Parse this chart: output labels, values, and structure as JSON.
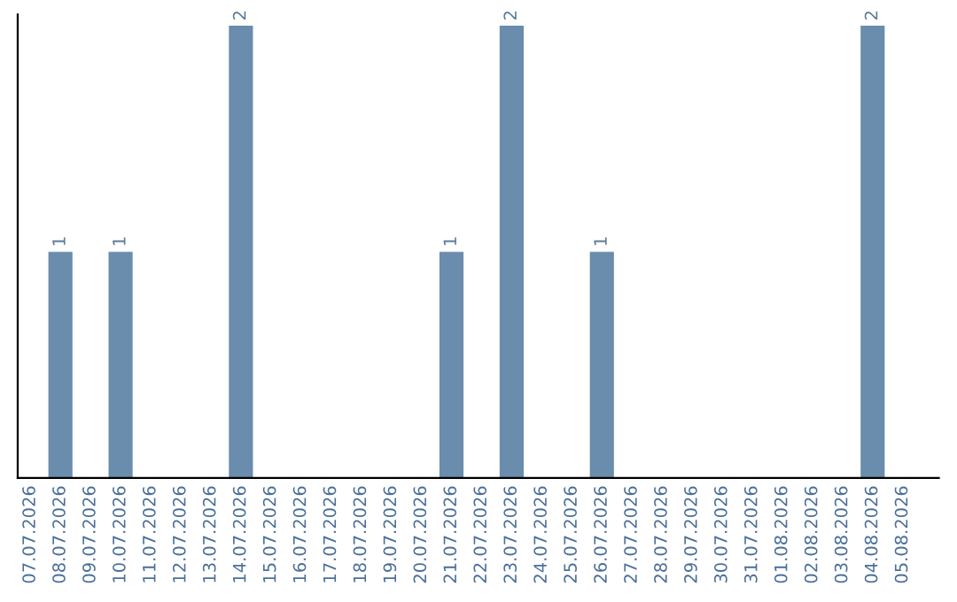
{
  "chart_data": {
    "type": "bar",
    "categories": [
      "07.07.2026",
      "08.07.2026",
      "09.07.2026",
      "10.07.2026",
      "11.07.2026",
      "12.07.2026",
      "13.07.2026",
      "14.07.2026",
      "15.07.2026",
      "16.07.2026",
      "17.07.2026",
      "18.07.2026",
      "19.07.2026",
      "20.07.2026",
      "21.07.2026",
      "22.07.2026",
      "23.07.2026",
      "24.07.2026",
      "25.07.2026",
      "26.07.2026",
      "27.07.2026",
      "28.07.2026",
      "29.07.2026",
      "30.07.2026",
      "31.07.2026",
      "01.08.2026",
      "02.08.2026",
      "03.08.2026",
      "04.08.2026",
      "05.08.2026"
    ],
    "values": [
      0,
      1,
      0,
      1,
      0,
      0,
      0,
      2,
      0,
      0,
      0,
      0,
      0,
      0,
      1,
      0,
      2,
      0,
      0,
      1,
      0,
      0,
      0,
      0,
      0,
      0,
      0,
      0,
      2,
      0
    ],
    "value_labels": [
      null,
      "1",
      null,
      "1",
      null,
      null,
      null,
      "2",
      null,
      null,
      null,
      null,
      null,
      null,
      "1",
      null,
      "2",
      null,
      null,
      "1",
      null,
      null,
      null,
      null,
      null,
      null,
      null,
      null,
      "2",
      null
    ],
    "color": "#6a8cad",
    "ylim": [
      0,
      2.05
    ],
    "tick_labels": "x",
    "grid": false,
    "legend": false
  }
}
